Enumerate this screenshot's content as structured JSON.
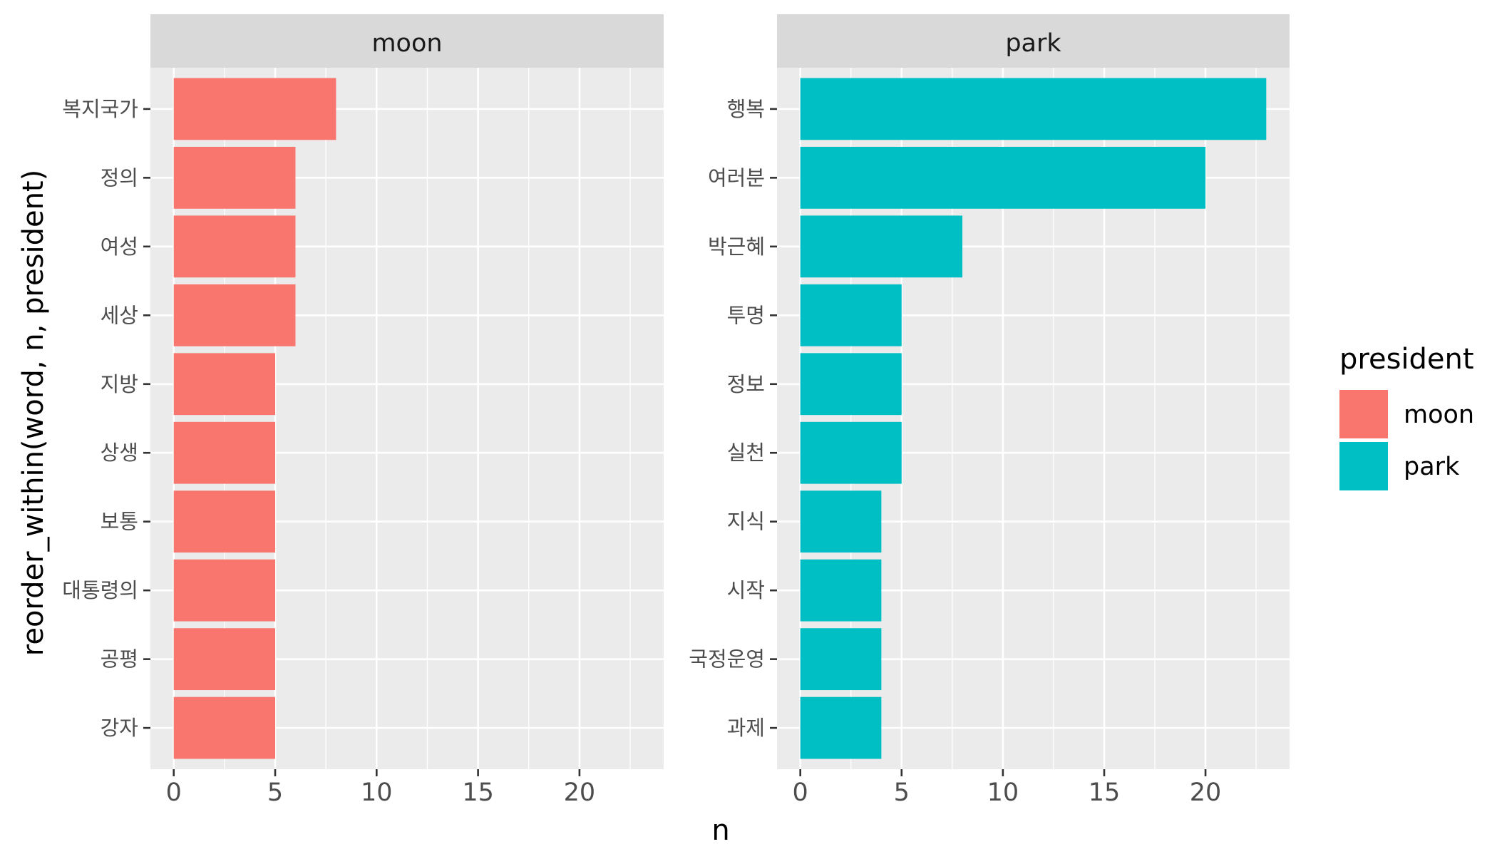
{
  "chart_data": {
    "type": "bar",
    "orientation": "horizontal",
    "xlabel": "n",
    "ylabel": "reorder_within(word, n, president)",
    "xlim": [
      0,
      24
    ],
    "x_ticks": [
      0,
      5,
      10,
      15,
      20
    ],
    "grid": true,
    "legend": {
      "title": "president",
      "placement": "right",
      "entries": [
        {
          "label": "moon",
          "color": "#F8766D"
        },
        {
          "label": "park",
          "color": "#00BFC4"
        }
      ]
    },
    "panels": [
      {
        "strip": "moon",
        "color": "#F8766D",
        "categories": [
          "복지국가",
          "정의",
          "여성",
          "세상",
          "지방",
          "상생",
          "보통",
          "대통령의",
          "공평",
          "강자"
        ],
        "values": [
          8,
          6,
          6,
          6,
          5,
          5,
          5,
          5,
          5,
          5
        ]
      },
      {
        "strip": "park",
        "color": "#00BFC4",
        "categories": [
          "행복",
          "여러분",
          "박근혜",
          "투명",
          "정보",
          "실천",
          "지식",
          "시작",
          "국정운영",
          "과제"
        ],
        "values": [
          23,
          20,
          8,
          5,
          5,
          5,
          4,
          4,
          4,
          4
        ]
      }
    ]
  }
}
